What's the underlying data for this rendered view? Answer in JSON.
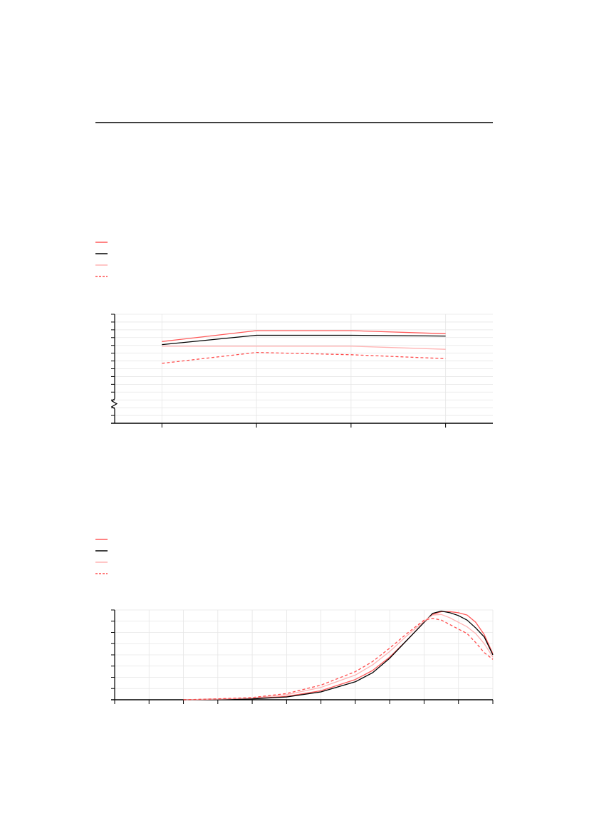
{
  "colors": {
    "series_red": "#ff5a5a",
    "series_black": "#000000",
    "series_pink": "#ffb3b3",
    "series_red_dashed": "#ff4d4d",
    "grid": "#e6e6e6",
    "axis": "#000000"
  },
  "chart_data": [
    {
      "type": "line",
      "title": "",
      "xlabel": "",
      "ylabel": "",
      "axis_break": true,
      "grid": true,
      "legend_placement": "top-left",
      "x": [
        1,
        2,
        3,
        4
      ],
      "xlim": [
        0.5,
        4.5
      ],
      "ylim": [
        0,
        14
      ],
      "series": [
        {
          "color_key": "series_red",
          "style": "solid",
          "values": [
            10.5,
            11.9,
            11.9,
            11.5
          ]
        },
        {
          "color_key": "series_black",
          "style": "solid",
          "values": [
            10.1,
            11.3,
            11.3,
            11.2
          ]
        },
        {
          "color_key": "series_pink",
          "style": "solid",
          "values": [
            9.9,
            9.9,
            9.9,
            9.5
          ]
        },
        {
          "color_key": "series_red_dashed",
          "style": "dashed",
          "values": [
            7.7,
            9.1,
            8.8,
            8.3
          ]
        }
      ]
    },
    {
      "type": "line",
      "title": "",
      "xlabel": "",
      "ylabel": "",
      "grid": true,
      "legend_placement": "top-left",
      "xlim": [
        0,
        11
      ],
      "ylim": [
        0,
        8
      ],
      "series": [
        {
          "color_key": "series_red",
          "style": "solid",
          "x": [
            2,
            3,
            4,
            5,
            6,
            7,
            7.5,
            8,
            8.5,
            9,
            9.25,
            9.5,
            9.75,
            10,
            10.25,
            10.5,
            10.75,
            11
          ],
          "values": [
            0,
            0.05,
            0.1,
            0.3,
            0.8,
            1.8,
            2.6,
            3.8,
            5.3,
            6.9,
            7.6,
            7.85,
            7.85,
            7.75,
            7.55,
            6.9,
            5.8,
            4.1
          ]
        },
        {
          "color_key": "series_black",
          "style": "solid",
          "x": [
            2,
            3,
            4,
            5,
            6,
            7,
            7.5,
            8,
            8.5,
            9,
            9.25,
            9.5,
            9.75,
            10,
            10.25,
            10.5,
            10.75,
            11
          ],
          "values": [
            0,
            0.04,
            0.08,
            0.25,
            0.7,
            1.6,
            2.4,
            3.7,
            5.3,
            6.9,
            7.7,
            7.9,
            7.75,
            7.5,
            7.1,
            6.4,
            5.6,
            4.0
          ]
        },
        {
          "color_key": "series_pink",
          "style": "solid",
          "x": [
            2,
            3,
            4,
            5,
            6,
            7,
            7.5,
            8,
            8.5,
            9,
            9.25,
            9.5,
            9.75,
            10,
            10.25,
            10.5,
            10.75,
            11
          ],
          "values": [
            0,
            0.06,
            0.15,
            0.45,
            1.1,
            2.2,
            3.1,
            4.3,
            5.7,
            7.0,
            7.55,
            7.6,
            7.3,
            6.9,
            6.5,
            5.9,
            5.0,
            3.8
          ]
        },
        {
          "color_key": "series_red_dashed",
          "style": "dashed",
          "x": [
            2,
            3,
            4,
            5,
            6,
            7,
            7.5,
            8,
            8.5,
            9,
            9.25,
            9.5,
            9.75,
            10,
            10.25,
            10.5,
            10.75,
            11
          ],
          "values": [
            0,
            0.08,
            0.2,
            0.55,
            1.3,
            2.5,
            3.4,
            4.6,
            5.9,
            7.1,
            7.25,
            7.1,
            6.7,
            6.3,
            5.9,
            5.1,
            4.2,
            3.6
          ]
        }
      ]
    }
  ]
}
